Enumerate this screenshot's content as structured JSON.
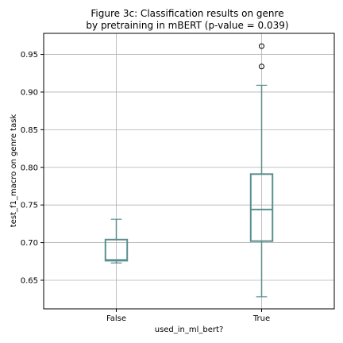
{
  "chart_data": {
    "type": "box",
    "title_lines": [
      "Figure 3c: Classification results on genre",
      "by pretraining in mBERT (p-value = 0.039)"
    ],
    "xlabel": "used_in_ml_bert?",
    "ylabel": "test_f1_macro on genre task",
    "categories": [
      "False",
      "True"
    ],
    "ylim": [
      0.612,
      0.978
    ],
    "yticks": [
      0.65,
      0.7,
      0.75,
      0.8,
      0.85,
      0.9,
      0.95
    ],
    "ytick_labels": [
      "0.65",
      "0.70",
      "0.75",
      "0.80",
      "0.85",
      "0.90",
      "0.95"
    ],
    "grid": true,
    "box_color": "#5a8f8f",
    "boxes": [
      {
        "category": "False",
        "whisker_low": 0.673,
        "q1": 0.676,
        "median": 0.677,
        "q3": 0.704,
        "whisker_high": 0.731,
        "outliers": []
      },
      {
        "category": "True",
        "whisker_low": 0.628,
        "q1": 0.702,
        "median": 0.744,
        "q3": 0.791,
        "whisker_high": 0.909,
        "outliers": [
          0.934,
          0.961
        ]
      }
    ]
  }
}
